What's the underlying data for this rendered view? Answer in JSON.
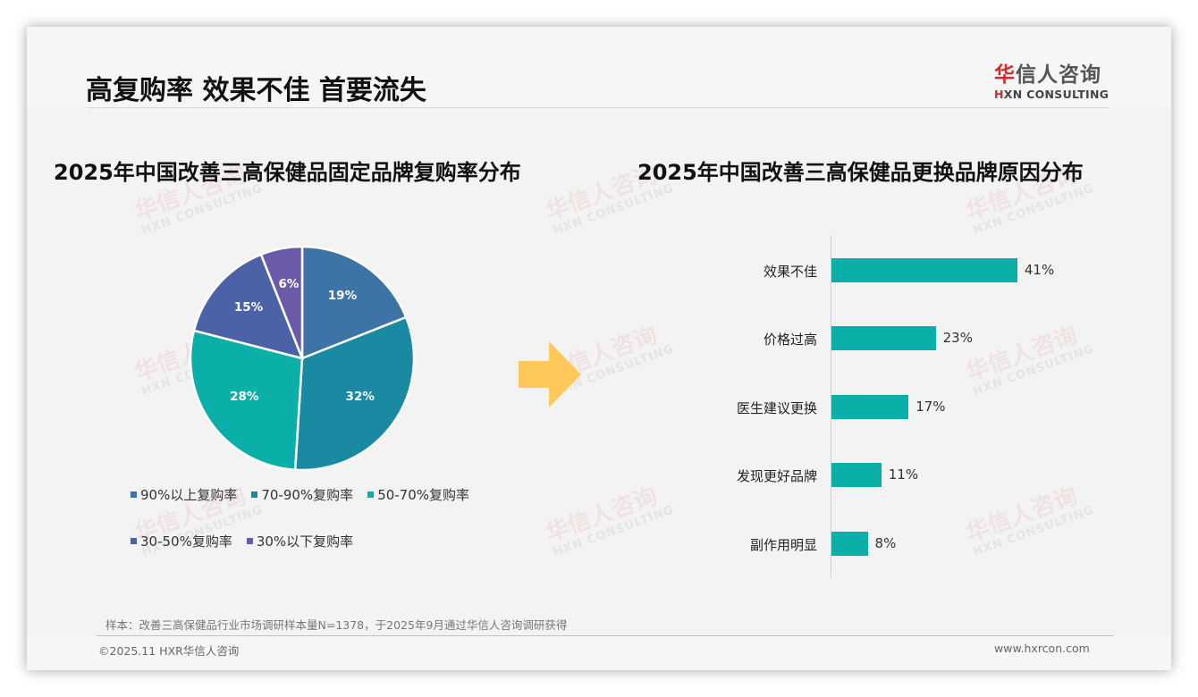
{
  "page": {
    "title": "高复购率 效果不佳 首要流失",
    "logo": {
      "cn_accent": "华",
      "cn_rest": "信人咨询",
      "en_accent": "H",
      "en_rest": "XN CONSULTING"
    },
    "watermark": {
      "cn": "华信人咨询",
      "en": "HXN CONSULTING"
    },
    "note": "样本：改善三高保健品行业市场调研样本量N=1378，于2025年9月通过华信人咨询调研获得",
    "copyright": "©2025.11 HXR华信人咨询",
    "website": "www.hxrcon.com",
    "arrow_color": "#ffc85a"
  },
  "chart_data": [
    {
      "type": "pie",
      "title": "2025年中国改善三高保健品固定品牌复购率分布",
      "categories": [
        "90%以上复购率",
        "70-90%复购率",
        "50-70%复购率",
        "30-50%复购率",
        "30%以下复购率"
      ],
      "values": [
        19,
        32,
        28,
        15,
        6
      ],
      "labels": [
        "19%",
        "32%",
        "28%",
        "15%",
        "6%"
      ],
      "colors": [
        "#3e73a8",
        "#1a8aa3",
        "#0aafa7",
        "#4c62a6",
        "#6a5aa8"
      ],
      "start_angle": "12 o'clock, clockwise",
      "legend_position": "bottom"
    },
    {
      "type": "bar",
      "orientation": "horizontal",
      "title": "2025年中国改善三高保健品更换品牌原因分布",
      "categories": [
        "效果不佳",
        "价格过高",
        "医生建议更换",
        "发现更好品牌",
        "副作用明显"
      ],
      "values": [
        41,
        23,
        17,
        11,
        8
      ],
      "labels": [
        "41%",
        "23%",
        "17%",
        "11%",
        "8%"
      ],
      "color": "#0aafa7",
      "grid": false,
      "xlabel": "",
      "ylabel": ""
    }
  ]
}
